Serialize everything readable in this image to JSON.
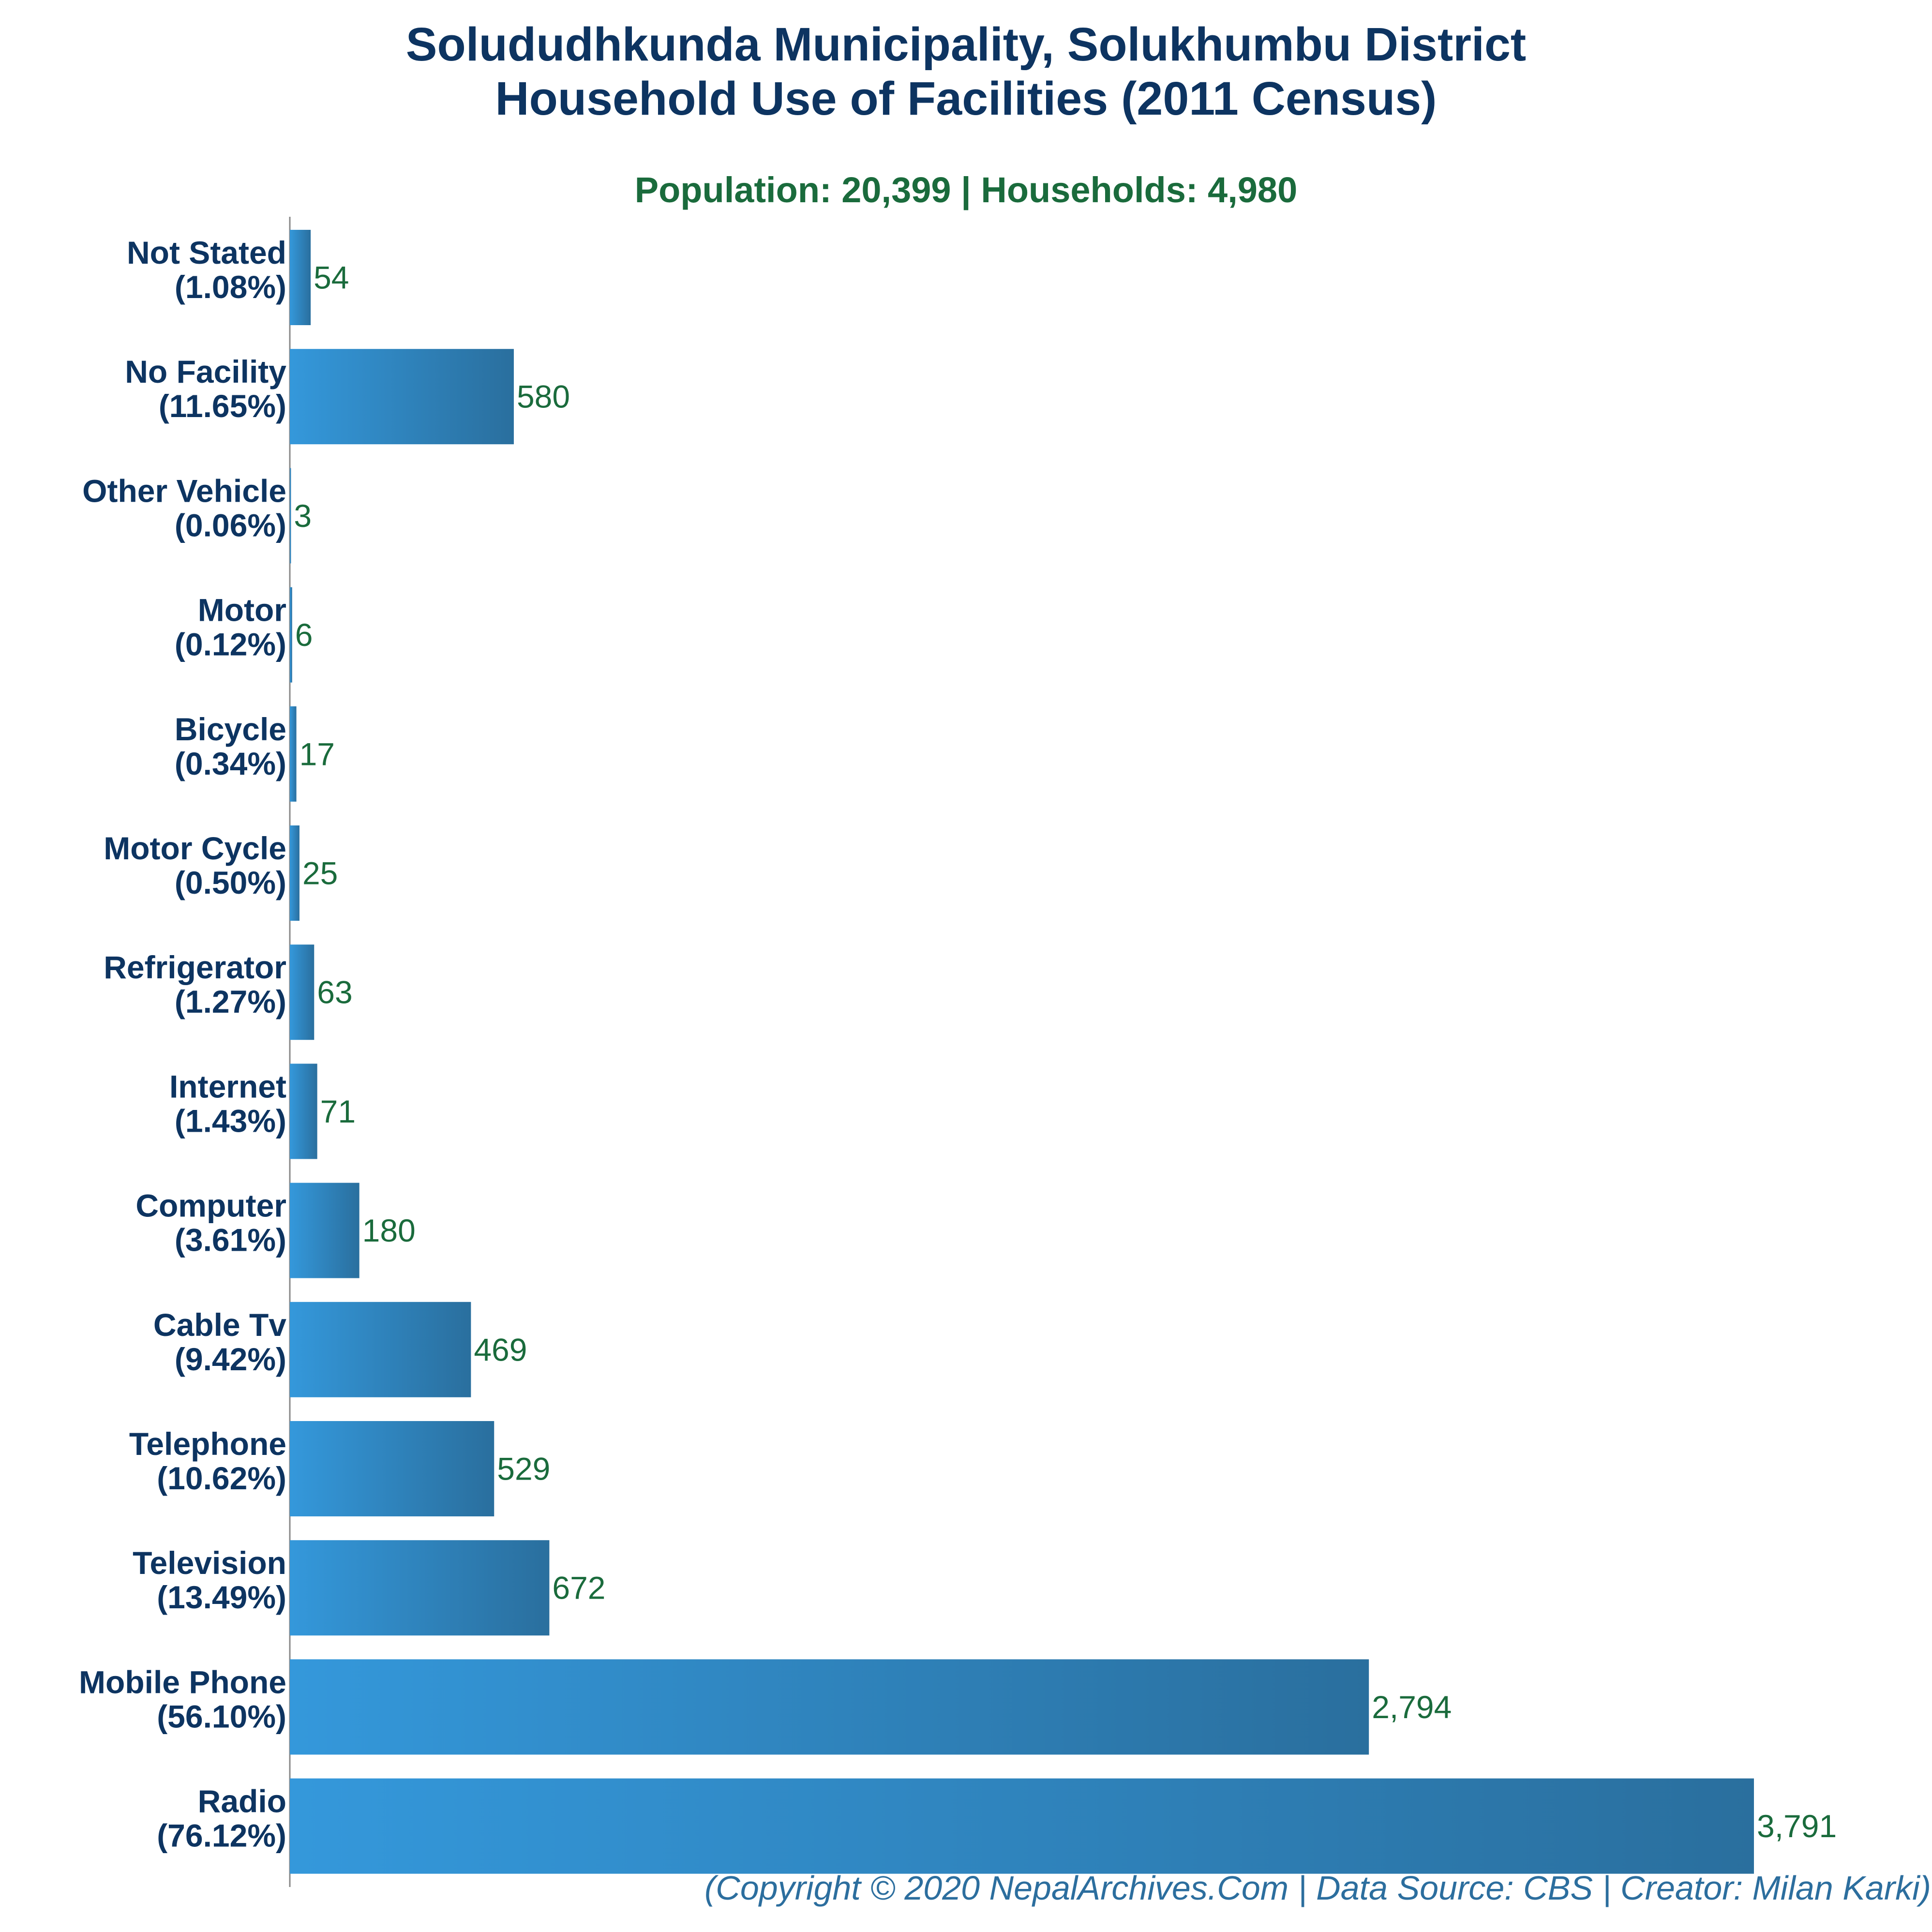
{
  "chart_data": {
    "type": "bar",
    "orientation": "horizontal",
    "title_line1": "Solududhkunda Municipality, Solukhumbu District",
    "title_line2": "Household Use of Facilities (2011 Census)",
    "subtitle": "Population: 20,399 | Households: 4,980",
    "footer": "(Copyright © 2020 NepalArchives.Com | Data Source: CBS | Creator: Milan Karki)",
    "categories": [
      "Not Stated",
      "No Facility",
      "Other Vehicle",
      "Motor",
      "Bicycle",
      "Motor Cycle",
      "Refrigerator",
      "Internet",
      "Computer",
      "Cable Tv",
      "Telephone",
      "Television",
      "Mobile Phone",
      "Radio"
    ],
    "percent_labels": [
      "(1.08%)",
      "(11.65%)",
      "(0.06%)",
      "(0.12%)",
      "(0.34%)",
      "(0.50%)",
      "(1.27%)",
      "(1.43%)",
      "(3.61%)",
      "(9.42%)",
      "(10.62%)",
      "(13.49%)",
      "(56.10%)",
      "(76.12%)"
    ],
    "values": [
      54,
      580,
      3,
      6,
      17,
      25,
      63,
      71,
      180,
      469,
      529,
      672,
      2794,
      3791
    ],
    "value_labels": [
      "54",
      "580",
      "3",
      "6",
      "17",
      "25",
      "63",
      "71",
      "180",
      "469",
      "529",
      "672",
      "2,794",
      "3,791"
    ],
    "xlim": [
      0,
      3791
    ],
    "grid": false,
    "legend": "none",
    "colors": {
      "bar_light": "#3498db",
      "bar_dark": "#2a6f9e",
      "label": "#0d3461",
      "value": "#1a6b3c",
      "axis": "#888888"
    }
  }
}
